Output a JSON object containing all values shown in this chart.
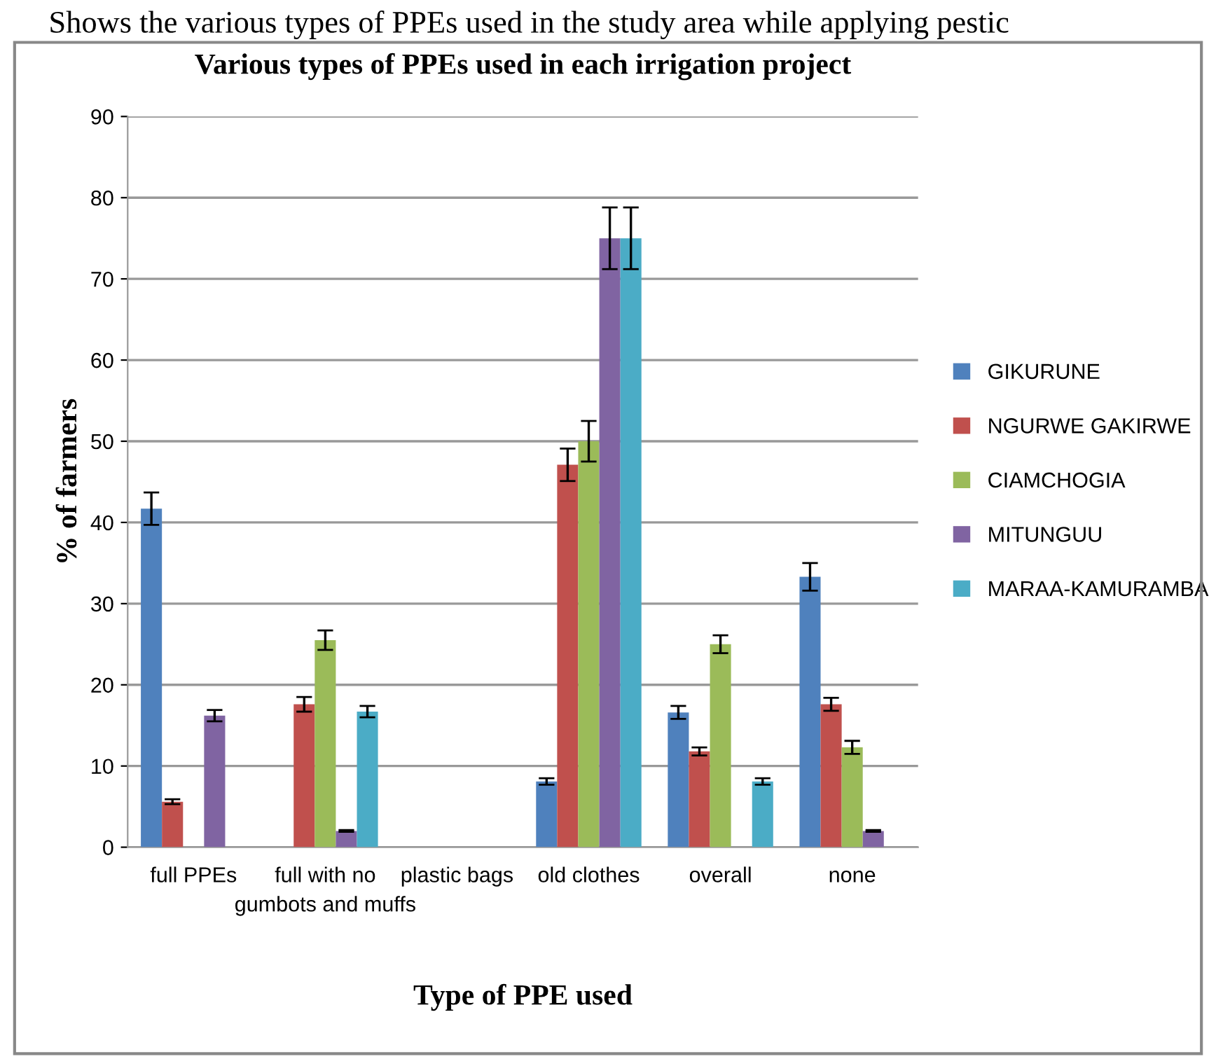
{
  "chart_data": {
    "type": "bar",
    "title": "Various types of PPEs used in each irrigation project",
    "xlabel": "Type of PPE used",
    "ylabel": "% of farmers",
    "annotations": [
      "Shows the various types of PPEs used in the study area while applying pestic"
    ],
    "categories": [
      "full PPEs",
      "full with no gumbots and muffs",
      "plastic bags",
      "old clothes",
      "overall",
      "none"
    ],
    "series": [
      {
        "name": "GIKURUNE",
        "color": "#4f81bd",
        "values": [
          41.7,
          0,
          0,
          8.1,
          16.6,
          33.3
        ],
        "errors": [
          2,
          null,
          null,
          0.4,
          0.8,
          1.7
        ]
      },
      {
        "name": "NGURWE GAKIRWE",
        "color": "#c0504d",
        "values": [
          5.6,
          17.6,
          0,
          47.1,
          11.8,
          17.6
        ],
        "errors": [
          0.3,
          0.9,
          null,
          2,
          0.5,
          0.8
        ]
      },
      {
        "name": "CIAMCHOGIA",
        "color": "#9bbb59",
        "values": [
          0,
          25.5,
          0,
          50,
          25,
          12.3
        ],
        "errors": [
          null,
          1.2,
          null,
          2.5,
          1.1,
          0.8
        ]
      },
      {
        "name": "MITUNGUU",
        "color": "#8064a2",
        "values": [
          16.2,
          2,
          0,
          75,
          0,
          2
        ],
        "errors": [
          0.7,
          0.1,
          null,
          3.8,
          null,
          0.1
        ]
      },
      {
        "name": "MARAA-KAMURAMBA",
        "color": "#4bacc6",
        "values": [
          0,
          16.7,
          0,
          75,
          8.1,
          0
        ],
        "errors": [
          null,
          0.7,
          null,
          3.8,
          0.4,
          null
        ]
      }
    ],
    "ylim": [
      0,
      90
    ],
    "yticks": [
      0,
      10,
      20,
      30,
      40,
      50,
      60,
      70,
      80,
      90
    ],
    "grid": "y",
    "legend": "right"
  }
}
